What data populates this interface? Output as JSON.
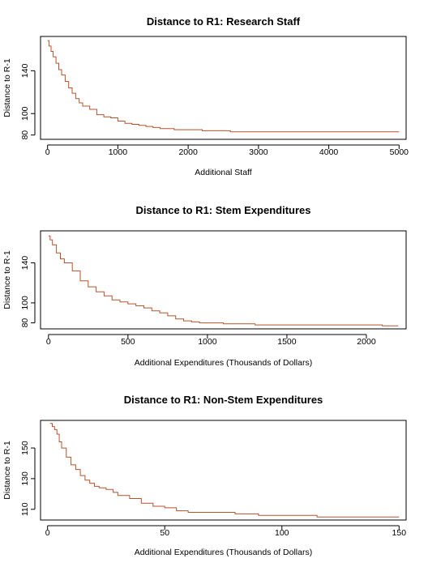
{
  "colors": {
    "line": "#b5532f",
    "axis": "#000000",
    "background": "#ffffff"
  },
  "chart_data": [
    {
      "type": "line",
      "title": "Distance to R1: Research Staff",
      "xlabel": "Additional Staff",
      "ylabel": "Distance to R-1",
      "xlim": [
        -100,
        5100
      ],
      "ylim": [
        76,
        172
      ],
      "xticks": [
        0,
        1000,
        2000,
        3000,
        4000,
        5000
      ],
      "yticks": [
        80,
        100,
        140
      ],
      "grid": false,
      "series": [
        {
          "x": [
            0,
            20,
            50,
            80,
            120,
            160,
            200,
            250,
            300,
            350,
            400,
            450,
            500,
            600,
            700,
            800,
            900,
            1000,
            1100,
            1200,
            1300,
            1400,
            1500,
            1600,
            1700,
            1800,
            2000,
            2200,
            2400,
            2600,
            3000,
            3500,
            4000,
            4500,
            5000
          ],
          "y": [
            168,
            163,
            158,
            153,
            147,
            141,
            136,
            130,
            124,
            119,
            114,
            110,
            107,
            104,
            99,
            97,
            96,
            93,
            91,
            90,
            89,
            88,
            87,
            86,
            86,
            85,
            85,
            84,
            84,
            83,
            83,
            83,
            83,
            83,
            83
          ]
        }
      ]
    },
    {
      "type": "line",
      "title": "Distance to R1: Stem Expenditures",
      "xlabel": "Additional Expenditures (Thousands of Dollars)",
      "ylabel": "Distance to R-1",
      "xlim": [
        -50,
        2250
      ],
      "ylim": [
        74,
        172
      ],
      "xticks": [
        0,
        500,
        1000,
        1500,
        2000
      ],
      "yticks": [
        80,
        100,
        140
      ],
      "grid": false,
      "series": [
        {
          "x": [
            0,
            10,
            25,
            50,
            75,
            100,
            150,
            200,
            250,
            300,
            350,
            400,
            450,
            500,
            550,
            600,
            650,
            700,
            750,
            800,
            850,
            900,
            950,
            1000,
            1100,
            1200,
            1300,
            1500,
            1800,
            2000,
            2100,
            2200
          ],
          "y": [
            167,
            163,
            158,
            150,
            144,
            140,
            132,
            122,
            116,
            111,
            107,
            103,
            101,
            99,
            97,
            95,
            92,
            90,
            87,
            84,
            82,
            81,
            80,
            80,
            79,
            79,
            78,
            78,
            78,
            78,
            77,
            77
          ]
        }
      ]
    },
    {
      "type": "line",
      "title": "Distance to R1: Non-Stem Expenditures",
      "xlabel": "Additional Expenditures (Thousands of Dollars)",
      "ylabel": "Distance to R-1",
      "xlim": [
        -3,
        153
      ],
      "ylim": [
        103,
        168
      ],
      "xticks": [
        0,
        50,
        100,
        150
      ],
      "yticks": [
        110,
        130,
        150
      ],
      "grid": false,
      "series": [
        {
          "x": [
            1,
            2,
            3,
            4,
            5,
            6,
            8,
            10,
            12,
            14,
            16,
            18,
            20,
            22,
            25,
            28,
            30,
            35,
            40,
            45,
            50,
            55,
            60,
            70,
            80,
            90,
            100,
            110,
            115,
            120,
            130,
            140,
            150
          ],
          "y": [
            166,
            164,
            162,
            159,
            154,
            150,
            144,
            139,
            136,
            132,
            129,
            127,
            125,
            124,
            123,
            121,
            119,
            117,
            114,
            112,
            111,
            109,
            108,
            108,
            107,
            106,
            106,
            106,
            105,
            105,
            105,
            105,
            105
          ]
        }
      ]
    }
  ]
}
